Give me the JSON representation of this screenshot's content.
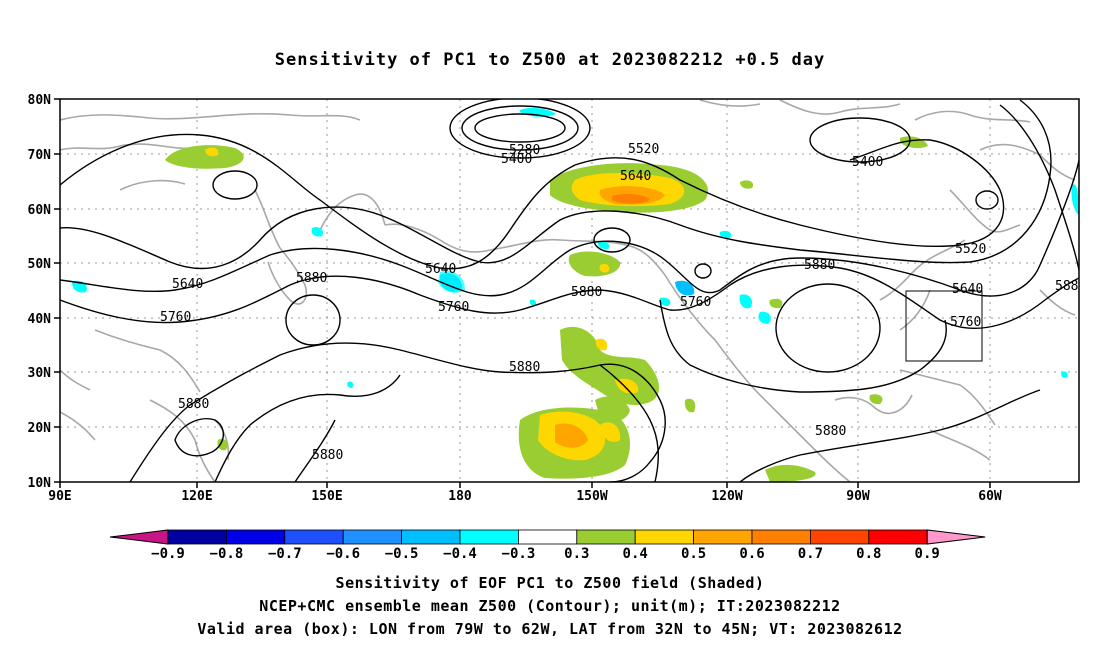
{
  "title": "Sensitivity of PC1 to Z500 at 2023082212 +0.5 day",
  "y_ticks": [
    "80N",
    "70N",
    "60N",
    "50N",
    "40N",
    "30N",
    "20N",
    "10N"
  ],
  "x_ticks": [
    "90E",
    "120E",
    "150E",
    "180",
    "150W",
    "120W",
    "90W",
    "60W"
  ],
  "contour_labels": [
    "5280",
    "5400",
    "5520",
    "5640",
    "5400",
    "5520",
    "5640",
    "5880",
    "5640",
    "5760",
    "5760",
    "5640",
    "5760",
    "5880",
    "5880",
    "5880",
    "5880",
    "5760",
    "5520",
    "5640",
    "5760",
    "588",
    "5880",
    "5880"
  ],
  "colorbar": {
    "labels": [
      "−0.9",
      "−0.8",
      "−0.7",
      "−0.6",
      "−0.5",
      "−0.4",
      "−0.3",
      "0.3",
      "0.4",
      "0.5",
      "0.6",
      "0.7",
      "0.8",
      "0.9"
    ],
    "colors": [
      "#c71585",
      "#0000a0",
      "#0000e6",
      "#1e50ff",
      "#1e90ff",
      "#00bfff",
      "#00ffff",
      "#ffffff",
      "#9acd32",
      "#ffd700",
      "#ffa500",
      "#ff7f00",
      "#ff4500",
      "#ff0000",
      "#ff99cc"
    ]
  },
  "captions": [
    "Sensitivity of EOF PC1 to Z500 field (Shaded)",
    "NCEP+CMC ensemble mean Z500 (Contour); unit(m); IT:2023082212",
    "Valid area (box): LON from 79W to 62W, LAT from 32N to 45N; VT: 2023082612"
  ]
}
